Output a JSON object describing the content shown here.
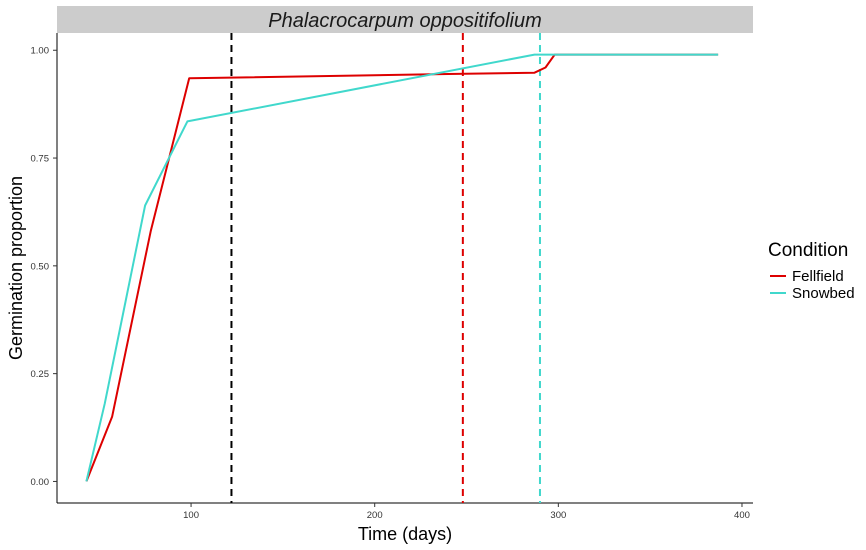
{
  "chart_data": {
    "type": "line",
    "title": "Phalacrocarpum oppositifolium",
    "xlabel": "Time (days)",
    "ylabel": "Germination proportion",
    "xlim": [
      27,
      406
    ],
    "ylim": [
      -0.05,
      1.04
    ],
    "x_ticks": [
      100,
      200,
      300,
      400
    ],
    "y_ticks": [
      0.0,
      0.25,
      0.5,
      0.75,
      1.0
    ],
    "x_tick_labels": [
      "100",
      "200",
      "300",
      "400"
    ],
    "y_tick_labels": [
      "0.00",
      "0.25",
      "0.50",
      "0.75",
      "1.00"
    ],
    "grid": false,
    "legend": {
      "title": "Condition",
      "position": "right",
      "entries": [
        "Fellfield",
        "Snowbed"
      ]
    },
    "series": [
      {
        "name": "Fellfield",
        "color": "#dd0000",
        "x": [
          43,
          57,
          78,
          99,
          240,
          287,
          293,
          298,
          387
        ],
        "y": [
          0.0,
          0.15,
          0.58,
          0.935,
          0.945,
          0.948,
          0.96,
          0.99,
          0.99
        ]
      },
      {
        "name": "Snowbed",
        "color": "#40d8cc",
        "x": [
          43,
          53,
          75,
          98,
          287,
          298,
          387
        ],
        "y": [
          0.0,
          0.18,
          0.64,
          0.835,
          0.99,
          0.99,
          0.99
        ]
      }
    ],
    "vlines": [
      {
        "x": 122,
        "color": "#000000"
      },
      {
        "x": 248,
        "color": "#dd0000"
      },
      {
        "x": 290,
        "color": "#40d8cc"
      }
    ]
  }
}
